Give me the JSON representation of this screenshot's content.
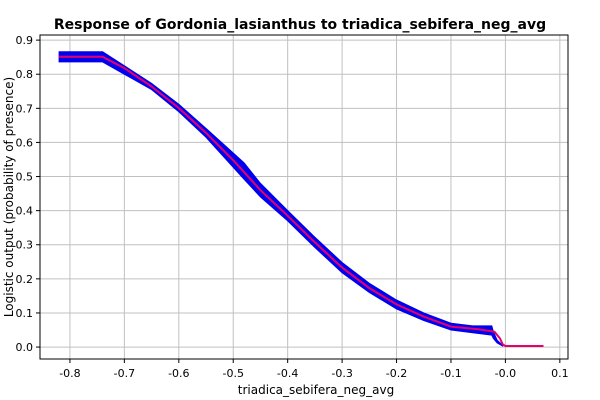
{
  "chart_data": {
    "type": "line",
    "title": "Response of Gordonia_lasianthus to triadica_sebifera_neg_avg",
    "xlabel": "triadica_sebifera_neg_avg",
    "ylabel": "Logistic output (probability of presence)",
    "xlim": [
      -0.855,
      0.115
    ],
    "ylim": [
      -0.035,
      0.915
    ],
    "xticks": [
      -0.8,
      -0.7,
      -0.6,
      -0.5,
      -0.4,
      -0.3,
      -0.2,
      -0.1,
      0.0,
      0.1
    ],
    "xtick_labels": [
      "-0.8",
      "-0.7",
      "-0.6",
      "-0.5",
      "-0.4",
      "-0.3",
      "-0.2",
      "-0.1",
      "-0.0",
      "0.1"
    ],
    "yticks": [
      0.0,
      0.1,
      0.2,
      0.3,
      0.4,
      0.5,
      0.6,
      0.7,
      0.8,
      0.9
    ],
    "ytick_labels": [
      "0.0",
      "0.1",
      "0.2",
      "0.3",
      "0.4",
      "0.5",
      "0.6",
      "0.7",
      "0.8",
      "0.9"
    ],
    "grid": true,
    "colors": {
      "band": "#0000ee",
      "mean": "#e8006a",
      "grid": "#c0c0c0"
    },
    "series": [
      {
        "role": "band",
        "x": [
          -0.82,
          -0.74,
          -0.65,
          -0.6,
          -0.55,
          -0.48,
          -0.45,
          -0.4,
          -0.35,
          -0.3,
          -0.25,
          -0.2,
          -0.15,
          -0.1,
          -0.06,
          -0.025,
          -0.022,
          -0.015,
          -0.005
        ],
        "upper": [
          0.866,
          0.866,
          0.773,
          0.712,
          0.641,
          0.54,
          0.48,
          0.4,
          0.322,
          0.248,
          0.187,
          0.138,
          0.1,
          0.07,
          0.062,
          0.062,
          0.045,
          0.02,
          0.005
        ],
        "lower": [
          0.836,
          0.836,
          0.755,
          0.69,
          0.615,
          0.492,
          0.44,
          0.37,
          0.292,
          0.218,
          0.16,
          0.112,
          0.078,
          0.05,
          0.042,
          0.035,
          0.025,
          0.012,
          0.003
        ]
      },
      {
        "role": "mean",
        "x": [
          -0.82,
          -0.74,
          -0.7,
          -0.65,
          -0.6,
          -0.55,
          -0.5,
          -0.45,
          -0.4,
          -0.35,
          -0.3,
          -0.25,
          -0.2,
          -0.15,
          -0.1,
          -0.05,
          -0.02,
          -0.01,
          -0.005,
          0.0,
          0.07
        ],
        "y": [
          0.851,
          0.851,
          0.818,
          0.764,
          0.701,
          0.628,
          0.548,
          0.46,
          0.385,
          0.307,
          0.233,
          0.173,
          0.125,
          0.089,
          0.06,
          0.052,
          0.045,
          0.025,
          0.008,
          0.003,
          0.003
        ]
      }
    ]
  }
}
